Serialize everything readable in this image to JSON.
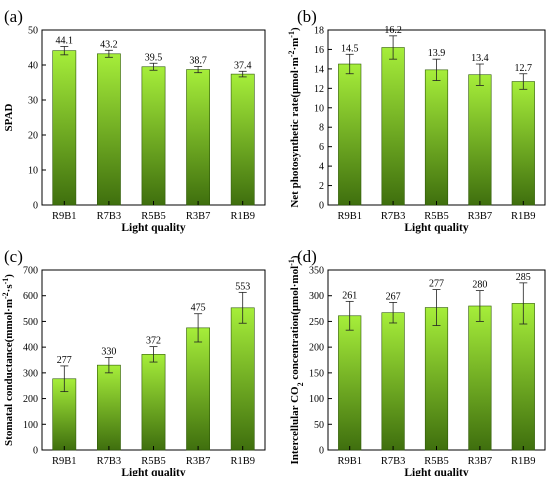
{
  "chart_data": [
    {
      "panel": "(a)",
      "type": "bar",
      "categories": [
        "R9B1",
        "R7B3",
        "R5B5",
        "R3B7",
        "R1B9"
      ],
      "values": [
        44.1,
        43.2,
        39.5,
        38.7,
        37.4
      ],
      "errors": [
        1.2,
        1.0,
        1.0,
        0.9,
        0.8
      ],
      "data_labels": [
        "44.1",
        "43.2",
        "39.5",
        "38.7",
        "37.4"
      ],
      "xlabel": "Light quality",
      "ylabel": "SPAD",
      "ylim": [
        0,
        50
      ],
      "yticks": [
        0,
        10,
        20,
        30,
        40,
        50
      ]
    },
    {
      "panel": "(b)",
      "type": "bar",
      "categories": [
        "R9B1",
        "R7B3",
        "R5B5",
        "R3B7",
        "R1B9"
      ],
      "values": [
        14.5,
        16.2,
        13.9,
        13.4,
        12.7
      ],
      "errors": [
        1.0,
        1.2,
        1.1,
        1.1,
        0.8
      ],
      "data_labels": [
        "14.5",
        "16.2",
        "13.9",
        "13.4",
        "12.7"
      ],
      "xlabel": "Light quality",
      "ylabel": "Net photosynthetic rate(μmol·m⁻²·m⁻¹)",
      "ylim": [
        0,
        18
      ],
      "yticks": [
        0,
        2,
        4,
        6,
        8,
        10,
        12,
        14,
        16,
        18
      ]
    },
    {
      "panel": "(c)",
      "type": "bar",
      "categories": [
        "R9B1",
        "R7B3",
        "R5B5",
        "R3B7",
        "R1B9"
      ],
      "values": [
        277,
        330,
        372,
        475,
        553
      ],
      "errors": [
        50,
        30,
        30,
        55,
        60
      ],
      "data_labels": [
        "277",
        "330",
        "372",
        "475",
        "553"
      ],
      "xlabel": "Light quality",
      "ylabel": "Stomatal conductance(mmol·m⁻²·s⁻¹)",
      "ylim": [
        0,
        700
      ],
      "yticks": [
        0,
        100,
        200,
        300,
        400,
        500,
        600,
        700
      ]
    },
    {
      "panel": "(d)",
      "type": "bar",
      "categories": [
        "R9B1",
        "R7B3",
        "R5B5",
        "R3B7",
        "R1B9"
      ],
      "values": [
        261,
        267,
        277,
        280,
        285
      ],
      "errors": [
        28,
        20,
        35,
        30,
        40
      ],
      "data_labels": [
        "261",
        "267",
        "277",
        "280",
        "285"
      ],
      "xlabel": "Light quality",
      "ylabel": "Intercellular CO₂ concentration(μmol·mol⁻¹)",
      "ylim": [
        0,
        350
      ],
      "yticks": [
        0,
        50,
        100,
        150,
        200,
        250,
        300,
        350
      ]
    }
  ],
  "colors": {
    "bar_top": "#a6ee3a",
    "bar_bottom": "#3f6f0e",
    "axis": "#000000"
  }
}
